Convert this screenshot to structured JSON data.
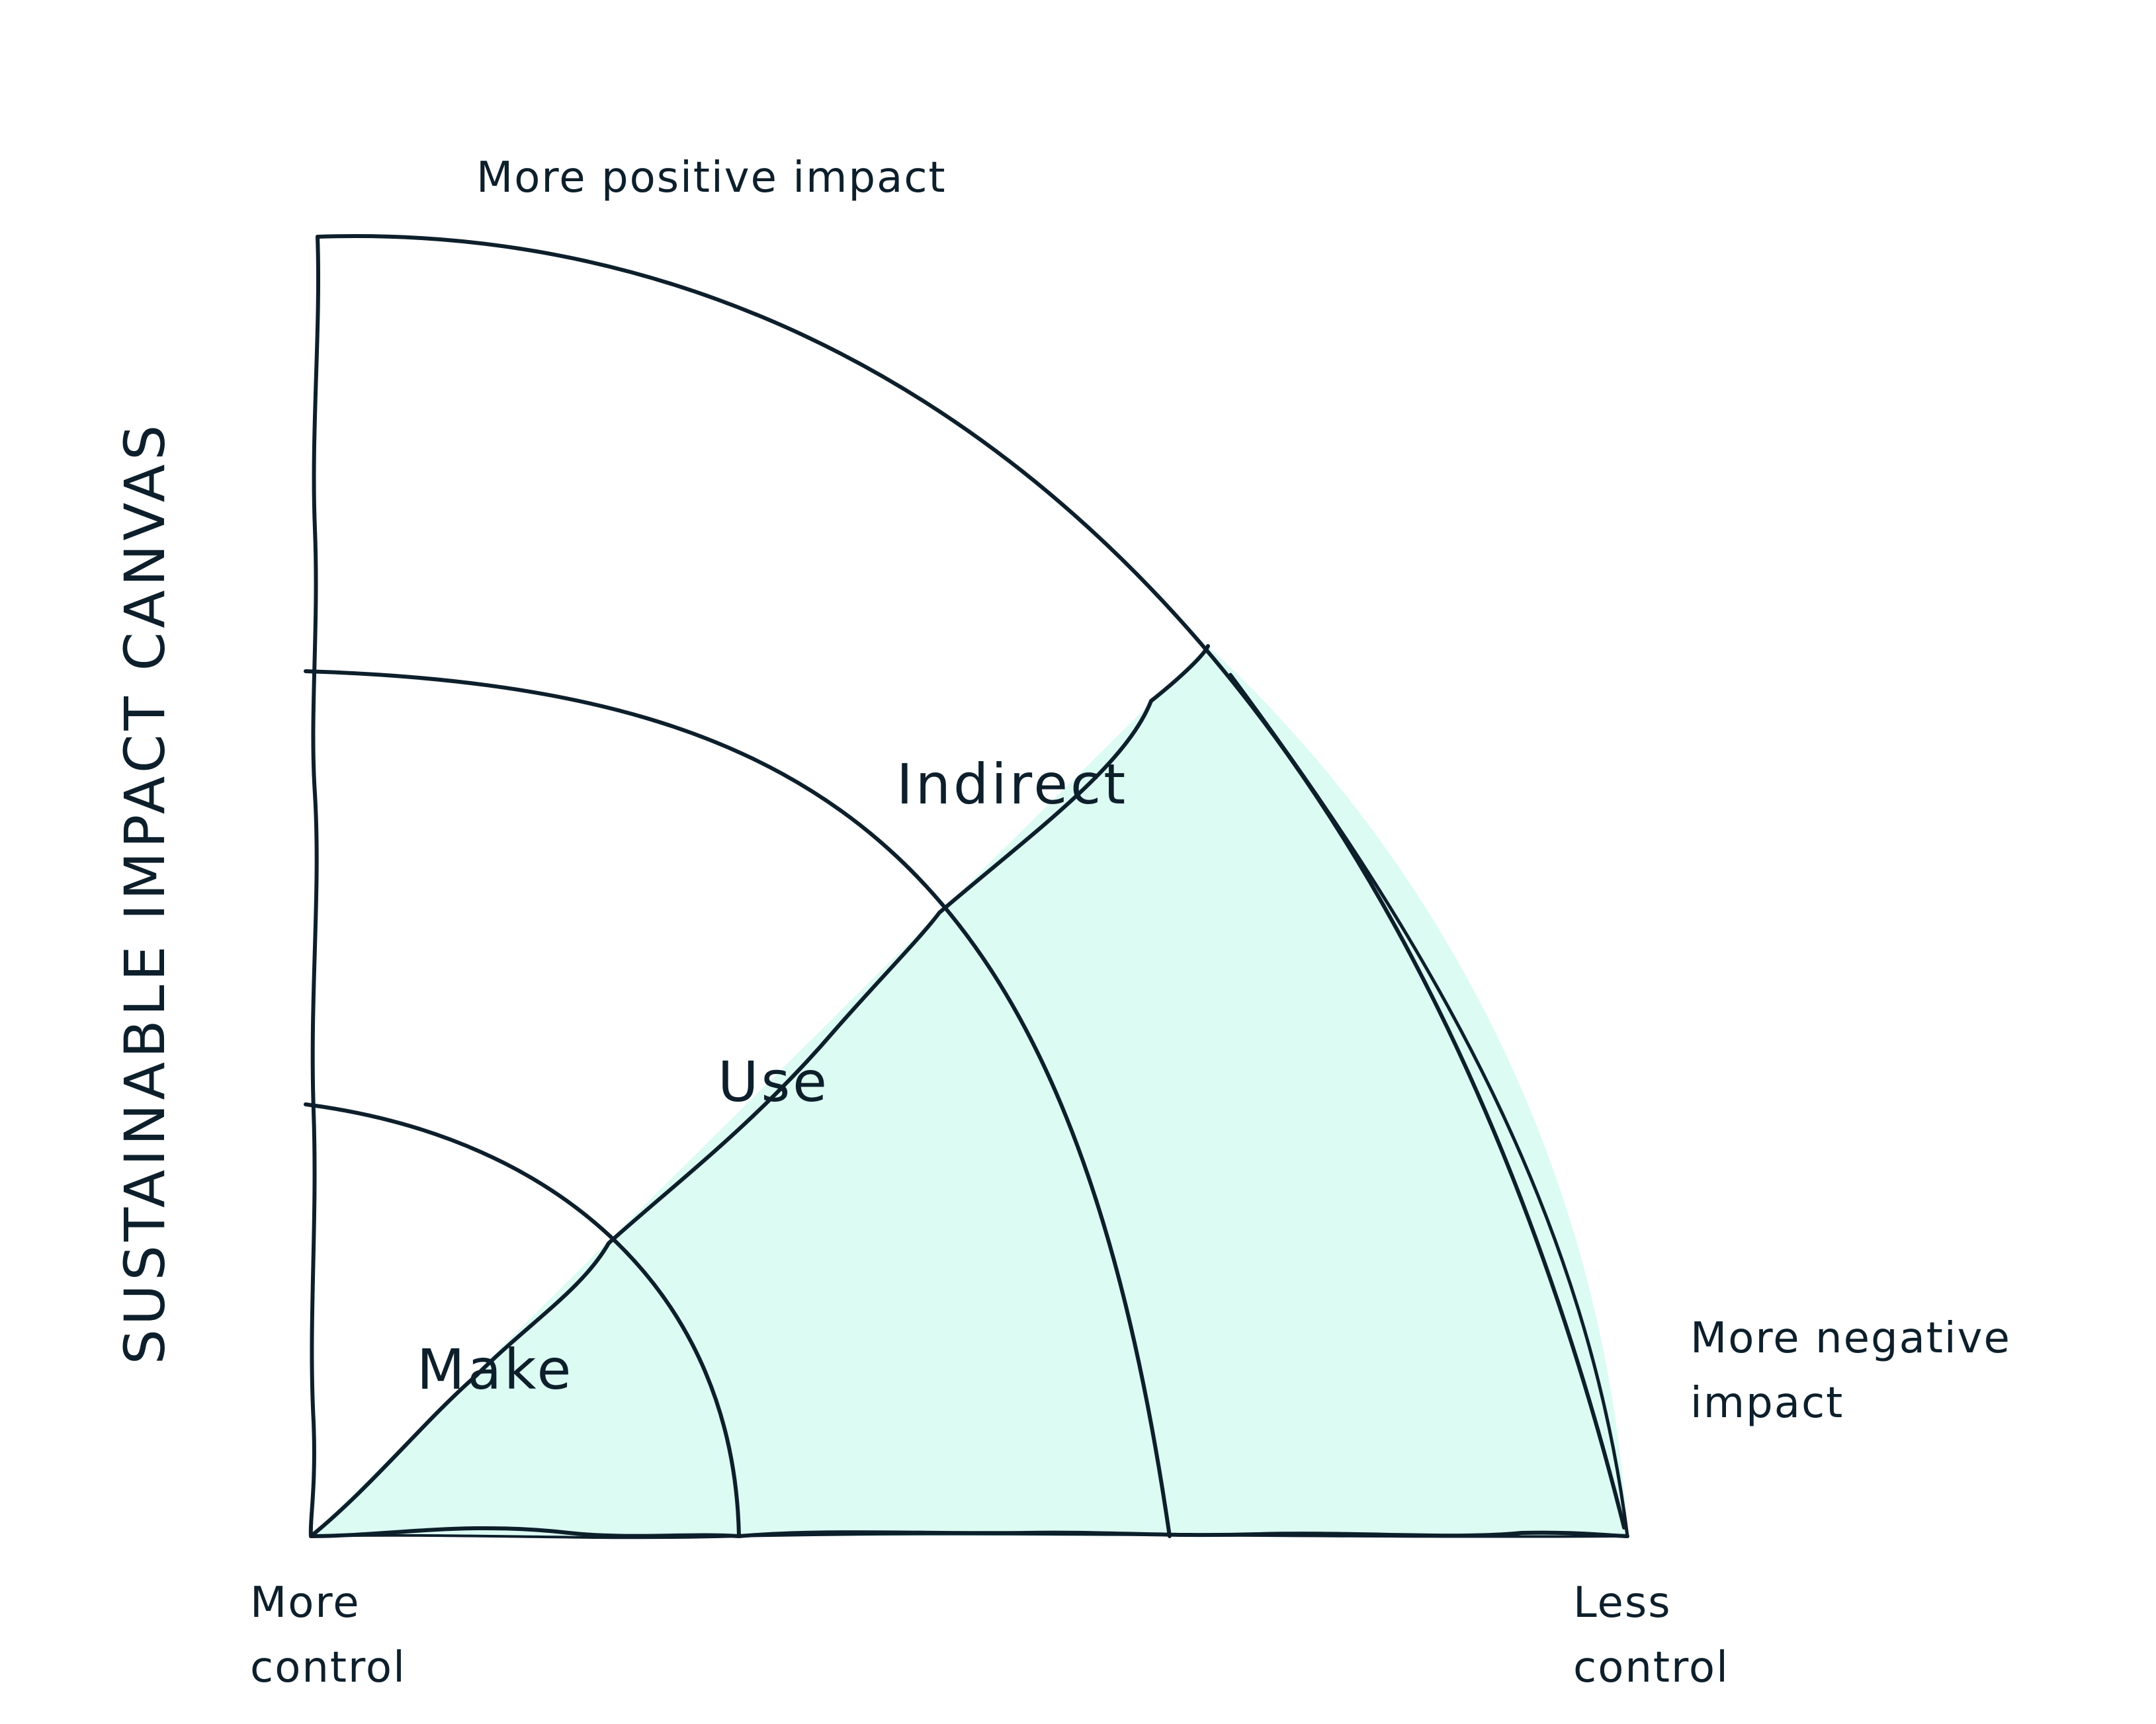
{
  "diagram": {
    "title": "SUSTAINABLE IMPACT CANVAS",
    "top_label": "More positive impact",
    "right_label": [
      "More negative",
      "impact"
    ],
    "bottom_left_label": [
      "More",
      "control"
    ],
    "bottom_right_label": [
      "Less",
      "control"
    ],
    "zones": {
      "make": "Make",
      "use": "Use",
      "indirect": "Indirect"
    },
    "colors": {
      "line": "#0d1f2b",
      "shaded_fill": "#dcfbf3",
      "background": "#ffffff"
    }
  }
}
